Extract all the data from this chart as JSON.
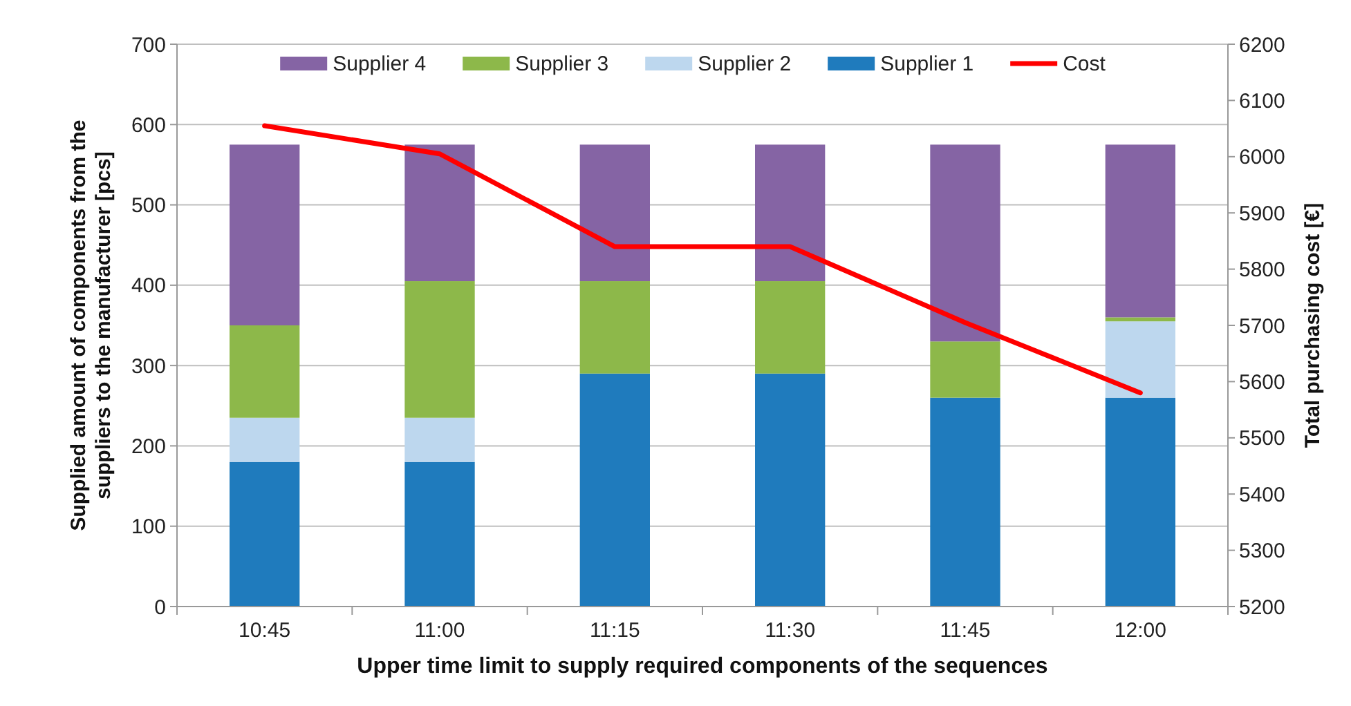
{
  "chart_data": {
    "type": "bar",
    "stacked": true,
    "xlabel": "Upper time limit to supply required components of the sequences",
    "ylabel": "Supplied amount of components from the suppliers  to the manufacturer [pcs]",
    "y2label": "Total purchasing cost [€]",
    "categories": [
      "10:45",
      "11:00",
      "11:15",
      "11:30",
      "11:45",
      "12:00"
    ],
    "series": [
      {
        "name": "Supplier 1",
        "color": "#1f7bbd",
        "values": [
          180,
          180,
          290,
          290,
          260,
          260
        ]
      },
      {
        "name": "Supplier 2",
        "color": "#bdd7ee",
        "values": [
          55,
          55,
          0,
          0,
          0,
          95
        ]
      },
      {
        "name": "Supplier 3",
        "color": "#8db84a",
        "values": [
          115,
          170,
          115,
          115,
          70,
          5
        ]
      },
      {
        "name": "Supplier 4",
        "color": "#8564a4",
        "values": [
          225,
          170,
          170,
          170,
          245,
          215
        ]
      },
      {
        "name": "Cost",
        "type": "line",
        "axis": "y2",
        "color": "#ff0000",
        "values": [
          6055,
          6005,
          5840,
          5840,
          5705,
          5580
        ]
      }
    ],
    "ylim": [
      0,
      700
    ],
    "yticks": [
      0,
      100,
      200,
      300,
      400,
      500,
      600,
      700
    ],
    "y2lim": [
      5200,
      6200
    ],
    "y2ticks": [
      5200,
      5300,
      5400,
      5500,
      5600,
      5700,
      5800,
      5900,
      6000,
      6100,
      6200
    ],
    "grid": "y",
    "legend": "top",
    "marker": "none",
    "line_style": "solid"
  }
}
